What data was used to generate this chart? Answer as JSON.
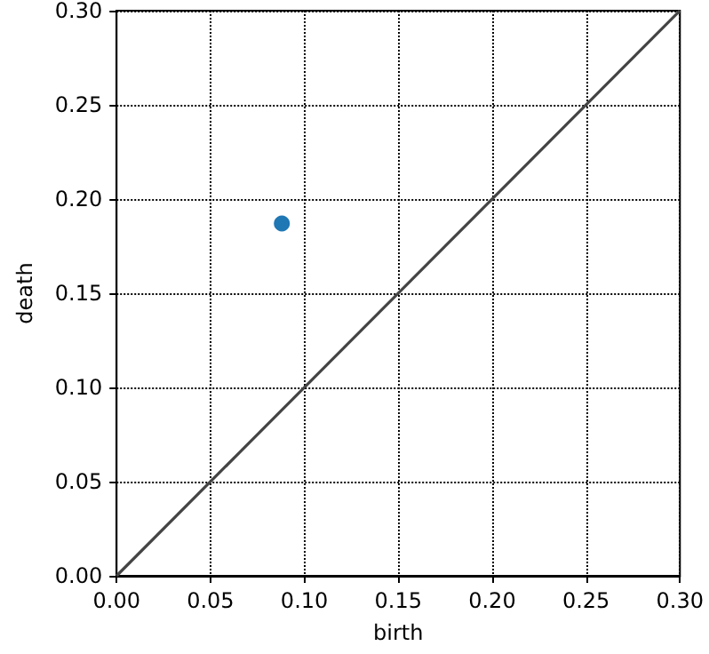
{
  "chart_data": {
    "type": "scatter",
    "xlabel": "birth",
    "ylabel": "death",
    "xlim": [
      0,
      0.3
    ],
    "ylim": [
      0,
      0.3
    ],
    "xticks": [
      {
        "value": 0,
        "label": "0.00"
      },
      {
        "value": 0.05,
        "label": "0.05"
      },
      {
        "value": 0.1,
        "label": "0.10"
      },
      {
        "value": 0.15,
        "label": "0.15"
      },
      {
        "value": 0.2,
        "label": "0.20"
      },
      {
        "value": 0.25,
        "label": "0.25"
      },
      {
        "value": 0.3,
        "label": "0.30"
      }
    ],
    "yticks": [
      {
        "value": 0,
        "label": "0.00"
      },
      {
        "value": 0.05,
        "label": "0.05"
      },
      {
        "value": 0.1,
        "label": "0.10"
      },
      {
        "value": 0.15,
        "label": "0.15"
      },
      {
        "value": 0.2,
        "label": "0.20"
      },
      {
        "value": 0.25,
        "label": "0.25"
      },
      {
        "value": 0.3,
        "label": "0.30"
      }
    ],
    "grid": true,
    "marker": "circle",
    "series": [
      {
        "type": "line",
        "x": [
          0,
          0.3
        ],
        "values": [
          0,
          0.3
        ],
        "color": "#444444",
        "marker": "none",
        "line_style": "solid"
      },
      {
        "x": [
          0.088
        ],
        "values": [
          0.187
        ],
        "color": "#1f77b4"
      }
    ]
  }
}
